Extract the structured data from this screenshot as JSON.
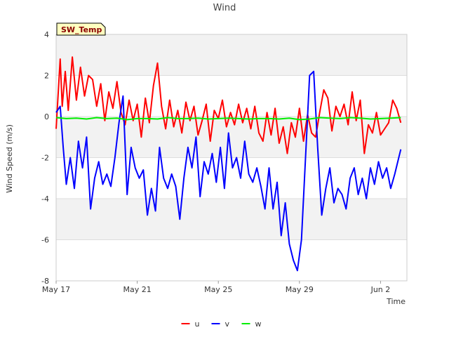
{
  "chart_data": {
    "type": "line",
    "title": "Wind",
    "xlabel": "Time",
    "ylabel": "Wind Speed (m/s)",
    "ylim": [
      -8,
      4
    ],
    "xlim": [
      0,
      17.3
    ],
    "yticks": [
      -8,
      -6,
      -4,
      -2,
      0,
      2,
      4
    ],
    "xticks": [
      {
        "value": 0,
        "label": "May 17"
      },
      {
        "value": 4,
        "label": "May 21"
      },
      {
        "value": 8,
        "label": "May 25"
      },
      {
        "value": 12,
        "label": "May 29"
      },
      {
        "value": 16,
        "label": "Jun 2"
      }
    ],
    "badge": "SW_Temp",
    "grid": true,
    "legend_position": "bottom-center",
    "series": [
      {
        "name": "u",
        "color": "#ff0000",
        "x": [
          0,
          0.2,
          0.3,
          0.45,
          0.6,
          0.8,
          1.0,
          1.2,
          1.4,
          1.6,
          1.8,
          2.0,
          2.2,
          2.4,
          2.6,
          2.8,
          3.0,
          3.2,
          3.4,
          3.6,
          3.8,
          4.0,
          4.2,
          4.4,
          4.6,
          4.8,
          5.0,
          5.2,
          5.4,
          5.6,
          5.8,
          6.0,
          6.2,
          6.4,
          6.6,
          6.8,
          7.0,
          7.2,
          7.4,
          7.6,
          7.8,
          8.0,
          8.2,
          8.4,
          8.6,
          8.8,
          9.0,
          9.2,
          9.4,
          9.6,
          9.8,
          10.0,
          10.2,
          10.4,
          10.6,
          10.8,
          11.0,
          11.2,
          11.4,
          11.6,
          11.8,
          12.0,
          12.2,
          12.4,
          12.6,
          12.8,
          13.0,
          13.2,
          13.4,
          13.6,
          13.8,
          14.0,
          14.2,
          14.4,
          14.6,
          14.8,
          15.0,
          15.2,
          15.4,
          15.6,
          15.8,
          16.0,
          16.2,
          16.4,
          16.6,
          16.8,
          17.0
        ],
        "values": [
          -0.6,
          2.8,
          0.5,
          2.2,
          0.3,
          2.9,
          0.8,
          2.4,
          1.0,
          2.0,
          1.8,
          0.5,
          1.6,
          -0.2,
          1.2,
          0.4,
          1.7,
          0.2,
          -0.4,
          0.8,
          -0.2,
          0.6,
          -1.0,
          0.9,
          -0.3,
          1.5,
          2.6,
          0.5,
          -0.6,
          0.8,
          -0.5,
          0.3,
          -0.8,
          0.7,
          -0.2,
          0.5,
          -0.9,
          -0.2,
          0.6,
          -1.2,
          0.3,
          -0.1,
          0.8,
          -0.5,
          0.2,
          -0.4,
          0.6,
          -0.3,
          0.4,
          -0.6,
          0.5,
          -0.8,
          -1.2,
          0.2,
          -0.9,
          0.4,
          -1.3,
          -0.5,
          -1.8,
          -0.3,
          -1.0,
          0.4,
          -1.2,
          0.1,
          -0.8,
          -1.0,
          0.2,
          1.3,
          0.9,
          -0.7,
          0.5,
          0.0,
          0.6,
          -0.4,
          1.2,
          -0.2,
          0.8,
          -1.8,
          -0.4,
          -0.8,
          0.2,
          -0.9,
          -0.6,
          -0.3,
          0.8,
          0.4,
          -0.3
        ]
      },
      {
        "name": "v",
        "color": "#0000ff",
        "x": [
          0,
          0.2,
          0.35,
          0.5,
          0.7,
          0.9,
          1.1,
          1.3,
          1.5,
          1.7,
          1.9,
          2.1,
          2.3,
          2.5,
          2.7,
          2.9,
          3.1,
          3.3,
          3.5,
          3.7,
          3.9,
          4.1,
          4.3,
          4.5,
          4.7,
          4.9,
          5.1,
          5.3,
          5.5,
          5.7,
          5.9,
          6.1,
          6.3,
          6.5,
          6.7,
          6.9,
          7.1,
          7.3,
          7.5,
          7.7,
          7.9,
          8.1,
          8.3,
          8.5,
          8.7,
          8.9,
          9.1,
          9.3,
          9.5,
          9.7,
          9.9,
          10.1,
          10.3,
          10.5,
          10.7,
          10.9,
          11.1,
          11.3,
          11.5,
          11.7,
          11.9,
          12.1,
          12.3,
          12.5,
          12.7,
          12.9,
          13.1,
          13.3,
          13.5,
          13.7,
          13.9,
          14.1,
          14.3,
          14.5,
          14.7,
          14.9,
          15.1,
          15.3,
          15.5,
          15.7,
          15.9,
          16.1,
          16.3,
          16.5,
          16.7,
          16.9,
          17.0
        ],
        "values": [
          0.2,
          0.5,
          -1.5,
          -3.3,
          -2.0,
          -3.5,
          -1.2,
          -2.5,
          -1.0,
          -4.5,
          -3.0,
          -2.2,
          -3.3,
          -2.8,
          -3.4,
          -2.0,
          -0.3,
          1.0,
          -3.8,
          -1.5,
          -2.5,
          -3.0,
          -2.6,
          -4.8,
          -3.5,
          -4.6,
          -1.5,
          -3.0,
          -3.5,
          -2.8,
          -3.4,
          -5.0,
          -3.0,
          -1.5,
          -2.5,
          -1.0,
          -3.9,
          -2.2,
          -2.8,
          -1.8,
          -3.2,
          -1.5,
          -3.5,
          -0.8,
          -2.5,
          -2.0,
          -3.0,
          -1.2,
          -2.8,
          -3.2,
          -2.5,
          -3.4,
          -4.5,
          -2.5,
          -4.5,
          -3.2,
          -5.8,
          -4.2,
          -6.2,
          -7.0,
          -7.5,
          -6.0,
          -2.0,
          2.0,
          2.2,
          -1.5,
          -4.8,
          -3.5,
          -2.5,
          -4.2,
          -3.5,
          -3.8,
          -4.5,
          -3.0,
          -2.5,
          -3.8,
          -3.0,
          -4.0,
          -2.5,
          -3.3,
          -2.2,
          -3.0,
          -2.5,
          -3.5,
          -2.8,
          -2.0,
          -1.6
        ]
      },
      {
        "name": "w",
        "color": "#00ee00",
        "x": [
          0,
          0.5,
          1.0,
          1.5,
          2.0,
          2.5,
          3.0,
          3.5,
          4.0,
          4.5,
          5.0,
          5.5,
          6.0,
          6.5,
          7.0,
          7.5,
          8.0,
          8.5,
          9.0,
          9.5,
          10.0,
          10.5,
          11.0,
          11.5,
          12.0,
          12.5,
          13.0,
          13.5,
          14.0,
          14.5,
          15.0,
          15.5,
          16.0,
          16.5,
          17.0
        ],
        "values": [
          -0.05,
          -0.1,
          -0.08,
          -0.12,
          -0.05,
          -0.1,
          -0.08,
          -0.15,
          -0.1,
          -0.1,
          -0.12,
          -0.05,
          -0.1,
          -0.1,
          -0.08,
          -0.12,
          -0.1,
          -0.08,
          -0.1,
          -0.12,
          -0.1,
          -0.1,
          -0.12,
          -0.08,
          -0.15,
          -0.12,
          -0.05,
          -0.08,
          -0.1,
          -0.05,
          -0.08,
          -0.12,
          -0.1,
          -0.08,
          -0.05
        ]
      }
    ]
  }
}
